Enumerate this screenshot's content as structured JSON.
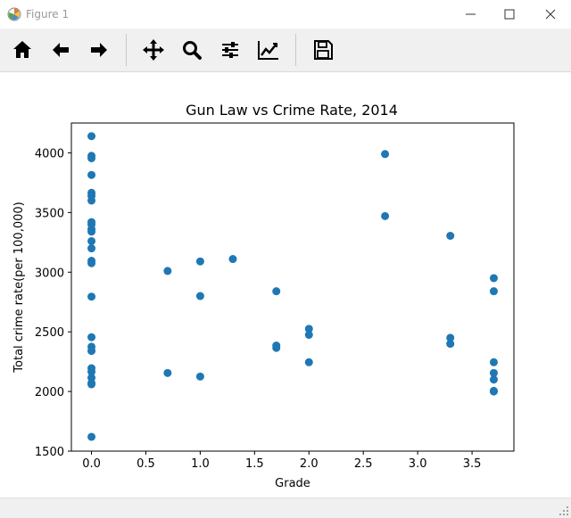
{
  "window": {
    "title": "Figure 1",
    "icon": "matplotlib-logo-icon",
    "buttons": [
      "minimize-icon",
      "maximize-icon",
      "close-icon"
    ]
  },
  "toolbar": {
    "items": [
      {
        "name": "home-button",
        "icon": "home-icon"
      },
      {
        "name": "back-button",
        "icon": "arrow-left-icon"
      },
      {
        "name": "forward-button",
        "icon": "arrow-right-icon"
      },
      {
        "name": "pan-button",
        "icon": "move-icon"
      },
      {
        "name": "zoom-button",
        "icon": "magnifier-icon"
      },
      {
        "name": "configure-subplots-button",
        "icon": "sliders-icon"
      },
      {
        "name": "edit-axis-button",
        "icon": "chart-line-icon"
      },
      {
        "name": "save-button",
        "icon": "floppy-disk-icon"
      }
    ]
  },
  "chart_data": {
    "type": "scatter",
    "title": "Gun Law vs Crime Rate, 2014",
    "xlabel": "Grade",
    "ylabel": "Total crime rate(per 100,000)",
    "xlim": [
      -0.185,
      3.885
    ],
    "ylim": [
      1500,
      4250
    ],
    "xticks": [
      0.0,
      0.5,
      1.0,
      1.5,
      2.0,
      2.5,
      3.0,
      3.5
    ],
    "xtick_labels": [
      "0.0",
      "0.5",
      "1.0",
      "1.5",
      "2.0",
      "2.5",
      "3.0",
      "3.5"
    ],
    "yticks": [
      1500,
      2000,
      2500,
      3000,
      3500,
      4000
    ],
    "ytick_labels": [
      "1500",
      "2000",
      "2500",
      "3000",
      "3500",
      "4000"
    ],
    "marker_color": "#1f77b4",
    "grid": false,
    "x": [
      0,
      0,
      0,
      0,
      0,
      0,
      0,
      0,
      0,
      0,
      0,
      0,
      0,
      0,
      0,
      0,
      0,
      0,
      0,
      0,
      0,
      0,
      0,
      0,
      0,
      0.7,
      0.7,
      1.0,
      1.0,
      1.0,
      1.3,
      1.7,
      1.7,
      1.7,
      2.0,
      2.0,
      2.0,
      2.7,
      2.7,
      3.3,
      3.3,
      3.3,
      3.7,
      3.7,
      3.7,
      3.7,
      3.7,
      3.7,
      3.7
    ],
    "y": [
      4140,
      3975,
      3955,
      3815,
      3665,
      3640,
      3600,
      3420,
      3400,
      3360,
      3340,
      3260,
      3200,
      3095,
      3075,
      2795,
      2455,
      2375,
      2340,
      2195,
      2165,
      2115,
      2070,
      1620,
      2060,
      3010,
      2155,
      3090,
      2800,
      2125,
      3110,
      2840,
      2385,
      2365,
      2525,
      2475,
      2245,
      3990,
      3470,
      3305,
      2450,
      2400,
      2950,
      2840,
      2245,
      2155,
      2100,
      2000,
      2005
    ]
  }
}
